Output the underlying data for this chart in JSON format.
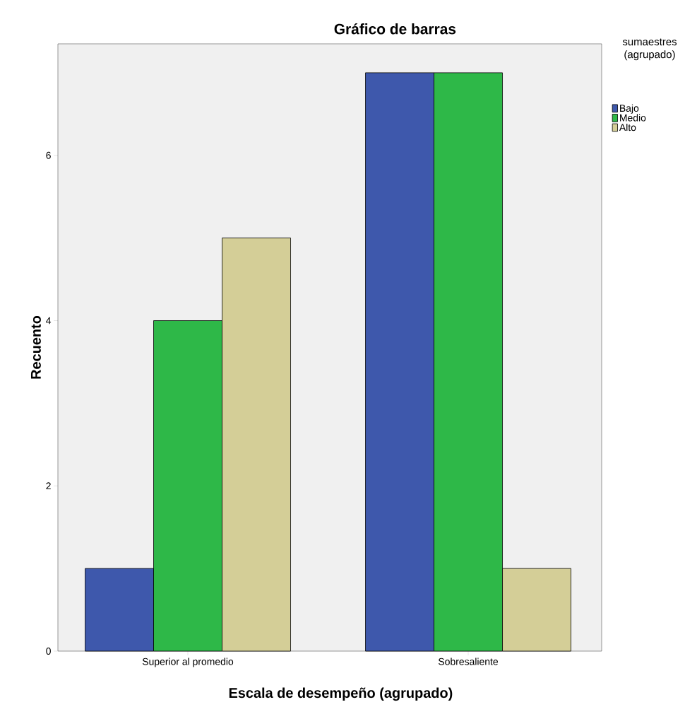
{
  "chart_data": {
    "type": "bar",
    "title": "Gráfico de barras",
    "xlabel": "Escala de desempeño (agrupado)",
    "ylabel": "Recuento",
    "legend_title": "sumaestres (agrupado)",
    "categories": [
      "Superior al promedio",
      "Sobresaliente"
    ],
    "series": [
      {
        "name": "Bajo",
        "color": "#3e58ac",
        "values": [
          1,
          7
        ]
      },
      {
        "name": "Medio",
        "color": "#2eb848",
        "values": [
          4,
          7
        ]
      },
      {
        "name": "Alto",
        "color": "#d4ce97",
        "values": [
          5,
          1
        ]
      }
    ],
    "ylim": [
      0,
      7.35
    ],
    "yticks": [
      0,
      2,
      4,
      6
    ],
    "legend": "top right",
    "grid": false
  }
}
